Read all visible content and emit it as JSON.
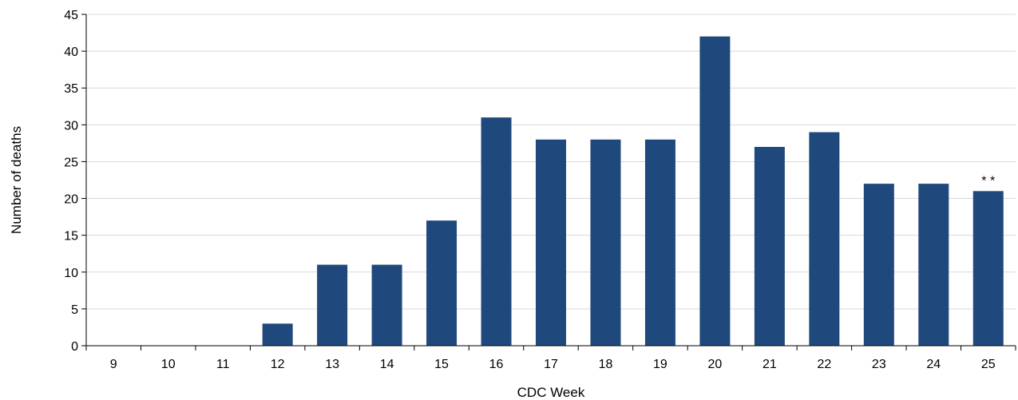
{
  "chart_data": {
    "type": "bar",
    "categories": [
      "9",
      "10",
      "11",
      "12",
      "13",
      "14",
      "15",
      "16",
      "17",
      "18",
      "19",
      "20",
      "21",
      "22",
      "23",
      "24",
      "25"
    ],
    "values": [
      0,
      0,
      0,
      3,
      11,
      11,
      17,
      31,
      28,
      28,
      28,
      42,
      27,
      29,
      22,
      22,
      21
    ],
    "title": "",
    "xlabel": "CDC Week",
    "ylabel": "Number of deaths",
    "ylim": [
      0,
      45
    ],
    "yticks": [
      0,
      5,
      10,
      15,
      20,
      25,
      30,
      35,
      40,
      45
    ],
    "grid": true,
    "bar_color": "#1F497D",
    "annotations": [
      {
        "category": "25",
        "text": "* *"
      }
    ]
  }
}
